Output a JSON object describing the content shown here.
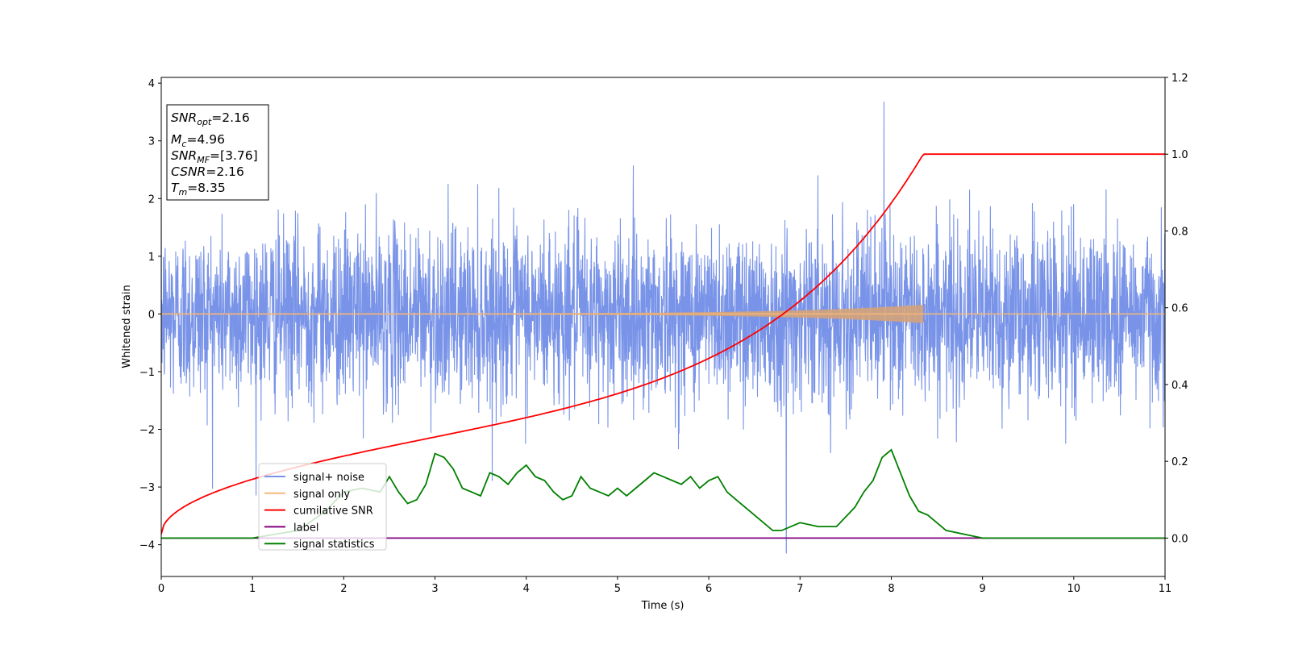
{
  "chart_data": {
    "type": "line",
    "xlabel": "Time (s)",
    "ylabel": "Whitened strain",
    "xlim": [
      0,
      11
    ],
    "ylim": [
      -4.55,
      4.1
    ],
    "y2lim": [
      -0.1,
      1.2
    ],
    "xticks": [
      "0",
      "1",
      "2",
      "3",
      "4",
      "5",
      "6",
      "7",
      "8",
      "9",
      "10",
      "11"
    ],
    "yticks": [
      "4",
      "3",
      "2",
      "1",
      "0",
      "−1",
      "−2",
      "−3",
      "−4"
    ],
    "y2ticks": [
      "1.2",
      "1.0",
      "0.8",
      "0.6",
      "0.4",
      "0.2",
      "0.0"
    ],
    "grid": false,
    "legend_position": "lower-left",
    "info_box": {
      "snr_opt": {
        "var": "SNR",
        "sub": "opt",
        "value": "=2.16"
      },
      "mc": {
        "var": "M",
        "sub": "c",
        "value": "=4.96"
      },
      "snr_mf": {
        "var": "SNR",
        "sub": "MF",
        "value": "=[3.76]"
      },
      "csnr": {
        "var": "CSNR",
        "value": "=2.16"
      },
      "tm": {
        "var": "T",
        "sub": "m",
        "value": "=8.35"
      }
    },
    "series": [
      {
        "name": "signal+ noise",
        "color": "#7893e8",
        "axis": "left",
        "kind": "noise",
        "std": 0.75,
        "extremes": [
          [
            7.92,
            3.68
          ],
          [
            6.85,
            -4.15
          ]
        ]
      },
      {
        "name": "signal only",
        "color": "#f5b87a",
        "axis": "left",
        "kind": "chirp",
        "t_merge": 8.35,
        "peak_amplitude": 0.16
      },
      {
        "name": "cumilative SNR",
        "color": "#ff0000",
        "axis": "right",
        "kind": "cumulative",
        "start": 0.01,
        "value_at_4s": 0.31,
        "value_at_7s": 0.6,
        "end": 1.0,
        "t_end": 8.35
      },
      {
        "name": "label",
        "color": "#800080",
        "axis": "right",
        "x": [
          0,
          11
        ],
        "y": [
          0.0,
          0.0
        ]
      },
      {
        "name": "signal statistics",
        "color": "#008000",
        "axis": "right",
        "x": [
          0,
          1,
          1.5,
          1.8,
          2.0,
          2.2,
          2.4,
          2.5,
          2.6,
          2.7,
          2.8,
          2.9,
          3.0,
          3.1,
          3.2,
          3.3,
          3.4,
          3.5,
          3.6,
          3.7,
          3.8,
          3.9,
          4.0,
          4.1,
          4.2,
          4.3,
          4.4,
          4.5,
          4.6,
          4.7,
          4.8,
          4.9,
          5.0,
          5.1,
          5.2,
          5.3,
          5.4,
          5.5,
          5.6,
          5.7,
          5.8,
          5.9,
          6.0,
          6.1,
          6.2,
          6.3,
          6.4,
          6.5,
          6.6,
          6.7,
          6.8,
          6.9,
          7.0,
          7.2,
          7.4,
          7.6,
          7.7,
          7.8,
          7.9,
          8.0,
          8.1,
          8.2,
          8.3,
          8.4,
          8.5,
          8.6,
          8.8,
          9.0,
          9.2,
          9.5,
          10.0,
          11.0
        ],
        "y": [
          0.0,
          0.0,
          0.02,
          0.07,
          0.12,
          0.13,
          0.12,
          0.16,
          0.12,
          0.09,
          0.1,
          0.14,
          0.22,
          0.21,
          0.18,
          0.13,
          0.12,
          0.11,
          0.17,
          0.16,
          0.14,
          0.17,
          0.19,
          0.16,
          0.15,
          0.12,
          0.1,
          0.11,
          0.16,
          0.13,
          0.12,
          0.11,
          0.13,
          0.11,
          0.13,
          0.15,
          0.17,
          0.16,
          0.15,
          0.14,
          0.16,
          0.13,
          0.15,
          0.16,
          0.12,
          0.1,
          0.08,
          0.06,
          0.04,
          0.02,
          0.02,
          0.03,
          0.04,
          0.03,
          0.03,
          0.08,
          0.12,
          0.15,
          0.21,
          0.23,
          0.17,
          0.11,
          0.07,
          0.06,
          0.04,
          0.02,
          0.01,
          0.0,
          0.0,
          0.0,
          0.0,
          0.0
        ]
      }
    ]
  }
}
